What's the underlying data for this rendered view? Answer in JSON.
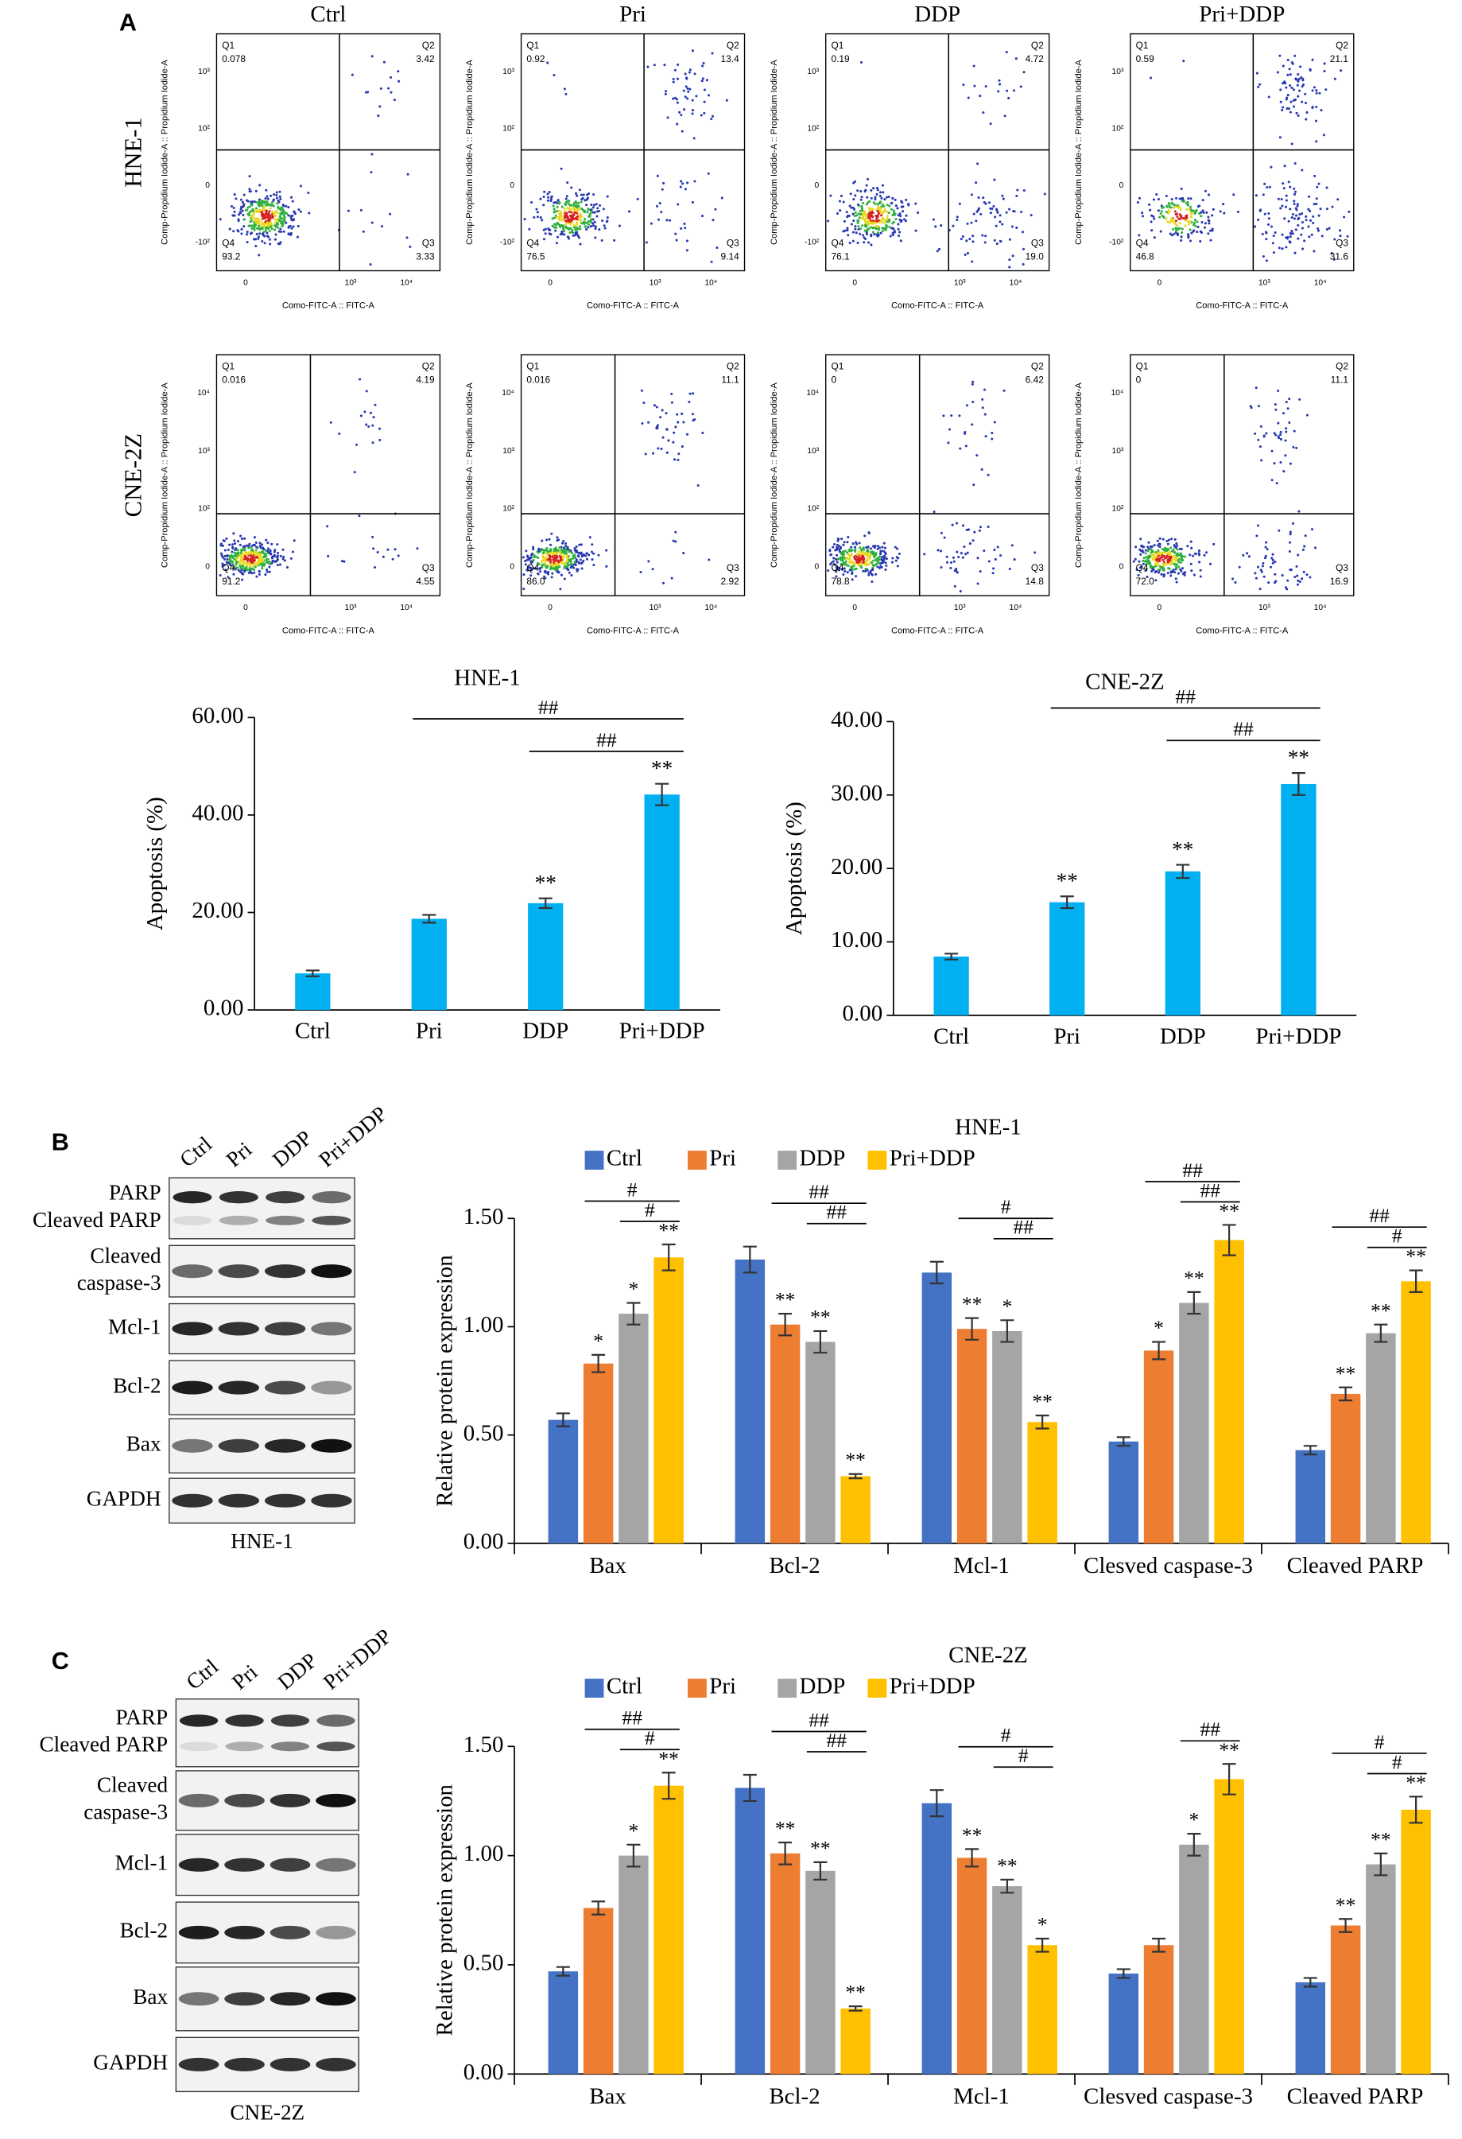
{
  "panel_labels": [
    "A",
    "B",
    "C"
  ],
  "flow": {
    "columns": [
      "Ctrl",
      "Pri",
      "DDP",
      "Pri+DDP"
    ],
    "quadrant_names": [
      "Q1",
      "Q2",
      "Q3",
      "Q4"
    ],
    "x_label": "Como-FITC-A :: FITC-A",
    "y_label": "Comp-Propidium Iodide-A :: Propidium Iodide-A",
    "rows": [
      {
        "label": "HNE-1",
        "yticks": [
          "-10²",
          "0",
          "10²",
          "10³"
        ],
        "xticks": [
          "0",
          "10³",
          "10⁴"
        ],
        "panels": [
          [
            "0.078",
            "3.42",
            "3.33",
            "93.2"
          ],
          [
            "0.92",
            "13.4",
            "9.14",
            "76.5"
          ],
          [
            "0.19",
            "4.72",
            "19.0",
            "76.1"
          ],
          [
            "0.59",
            "21.1",
            "31.6",
            "46.8"
          ]
        ]
      },
      {
        "label": "CNE-2Z",
        "yticks": [
          "0",
          "10²",
          "10³",
          "10⁴"
        ],
        "xticks": [
          "0",
          "10³",
          "10⁴"
        ],
        "panels": [
          [
            "0.016",
            "4.19",
            "4.55",
            "91.2"
          ],
          [
            "0.016",
            "11.1",
            "2.92",
            "86.0"
          ],
          [
            "0",
            "6.42",
            "14.8",
            "78.8"
          ],
          [
            "0",
            "11.1",
            "16.9",
            "72.0"
          ]
        ]
      }
    ]
  },
  "blots": [
    {
      "caption": "HNE-1",
      "lanes": [
        "Ctrl",
        "Pri",
        "DDP",
        "Pri+DDP"
      ],
      "rows": [
        [
          "PARP",
          "Cleaved PARP"
        ],
        [
          "Cleaved",
          "caspase-3"
        ],
        [
          "Mcl-1"
        ],
        [
          "Bcl-2"
        ],
        [
          "Bax"
        ],
        [
          "GAPDH"
        ]
      ]
    },
    {
      "caption": "CNE-2Z",
      "lanes": [
        "Ctrl",
        "Pri",
        "DDP",
        "Pri+DDP"
      ],
      "rows": [
        [
          "PARP",
          "Cleaved PARP"
        ],
        [
          "Cleaved",
          "caspase-3"
        ],
        [
          "Mcl-1"
        ],
        [
          "Bcl-2"
        ],
        [
          "Bax"
        ],
        [
          "GAPDH"
        ]
      ]
    }
  ],
  "chart_data": [
    {
      "type": "bar",
      "title": "HNE-1",
      "ylabel": "Apoptosis (%)",
      "color": "#00b0f0",
      "categories": [
        "Ctrl",
        "Pri",
        "DDP",
        "Pri+DDP"
      ],
      "values": [
        7.5,
        18.7,
        21.9,
        44.2
      ],
      "errors": [
        0.6,
        0.8,
        1.0,
        2.2
      ],
      "stars": [
        null,
        null,
        "**",
        "**"
      ],
      "brackets": [
        {
          "text": "##",
          "from": 1,
          "to": 3
        },
        {
          "text": "##",
          "from": 2,
          "to": 3
        }
      ],
      "ylim": [
        0,
        60
      ],
      "yticks": [
        {
          "value": 0,
          "label": "0.00"
        },
        {
          "value": 20,
          "label": "20.00"
        },
        {
          "value": 40,
          "label": "40.00"
        },
        {
          "value": 60,
          "label": "60.00"
        }
      ]
    },
    {
      "type": "bar",
      "title": "CNE-2Z",
      "ylabel": "Apoptosis (%)",
      "color": "#00b0f0",
      "categories": [
        "Ctrl",
        "Pri",
        "DDP",
        "Pri+DDP"
      ],
      "values": [
        8.0,
        15.4,
        19.6,
        31.5
      ],
      "errors": [
        0.4,
        0.8,
        0.9,
        1.5
      ],
      "stars": [
        null,
        "**",
        "**",
        "**"
      ],
      "brackets": [
        {
          "text": "##",
          "from": 1,
          "to": 3
        },
        {
          "text": "##",
          "from": 2,
          "to": 3
        }
      ],
      "ylim": [
        0,
        40
      ],
      "yticks": [
        {
          "value": 0,
          "label": "0.00"
        },
        {
          "value": 10,
          "label": "10.00"
        },
        {
          "value": 20,
          "label": "20.00"
        },
        {
          "value": 30,
          "label": "30.00"
        },
        {
          "value": 40,
          "label": "40.00"
        }
      ]
    },
    {
      "type": "grouped_bar",
      "title": "HNE-1",
      "ylabel": "Relative protein expression",
      "categories": [
        "Bax",
        "Bcl-2",
        "Mcl-1",
        "Clesved caspase-3",
        "Cleaved PARP"
      ],
      "series": [
        {
          "name": "Ctrl",
          "color": "#4472c4",
          "values": [
            0.57,
            1.31,
            1.25,
            0.47,
            0.43
          ],
          "errors": [
            0.03,
            0.06,
            0.05,
            0.02,
            0.02
          ],
          "stars": [
            null,
            null,
            null,
            null,
            null
          ]
        },
        {
          "name": "Pri",
          "color": "#ed7d31",
          "values": [
            0.83,
            1.01,
            0.99,
            0.89,
            0.69
          ],
          "errors": [
            0.04,
            0.05,
            0.05,
            0.04,
            0.03
          ],
          "stars": [
            "*",
            "**",
            "**",
            "*",
            "**"
          ]
        },
        {
          "name": "DDP",
          "color": "#a5a5a5",
          "values": [
            1.06,
            0.93,
            0.98,
            1.11,
            0.97
          ],
          "errors": [
            0.05,
            0.05,
            0.05,
            0.05,
            0.04
          ],
          "stars": [
            "*",
            "**",
            "*",
            "**",
            "**"
          ]
        },
        {
          "name": "Pri+DDP",
          "color": "#ffc000",
          "values": [
            1.32,
            0.31,
            0.56,
            1.4,
            1.21
          ],
          "errors": [
            0.06,
            0.01,
            0.03,
            0.07,
            0.05
          ],
          "stars": [
            "**",
            "**",
            "**",
            "**",
            "**"
          ]
        }
      ],
      "brackets": [
        {
          "text": "#",
          "category": 0,
          "from": 1,
          "to": 3
        },
        {
          "text": "#",
          "category": 0,
          "from": 2,
          "to": 3
        },
        {
          "text": "##",
          "category": 1,
          "from": 1,
          "to": 3
        },
        {
          "text": "##",
          "category": 1,
          "from": 2,
          "to": 3
        },
        {
          "text": "#",
          "category": 2,
          "from": 1,
          "to": 3
        },
        {
          "text": "##",
          "category": 2,
          "from": 2,
          "to": 3
        },
        {
          "text": "##",
          "category": 3,
          "from": 1,
          "to": 3
        },
        {
          "text": "##",
          "category": 3,
          "from": 2,
          "to": 3
        },
        {
          "text": "##",
          "category": 4,
          "from": 1,
          "to": 3
        },
        {
          "text": "#",
          "category": 4,
          "from": 2,
          "to": 3
        }
      ],
      "ylim": [
        0,
        1.5
      ],
      "yticks": [
        {
          "value": 0,
          "label": "0.00"
        },
        {
          "value": 0.5,
          "label": "0.50"
        },
        {
          "value": 1,
          "label": "1.00"
        },
        {
          "value": 1.5,
          "label": "1.50"
        }
      ]
    },
    {
      "type": "grouped_bar",
      "title": "CNE-2Z",
      "ylabel": "Relative protein expression",
      "categories": [
        "Bax",
        "Bcl-2",
        "Mcl-1",
        "Clesved caspase-3",
        "Cleaved PARP"
      ],
      "series": [
        {
          "name": "Ctrl",
          "color": "#4472c4",
          "values": [
            0.47,
            1.31,
            1.24,
            0.46,
            0.42
          ],
          "errors": [
            0.02,
            0.06,
            0.06,
            0.02,
            0.02
          ],
          "stars": [
            null,
            null,
            null,
            null,
            null
          ]
        },
        {
          "name": "Pri",
          "color": "#ed7d31",
          "values": [
            0.76,
            1.01,
            0.99,
            0.59,
            0.68
          ],
          "errors": [
            0.03,
            0.05,
            0.04,
            0.03,
            0.03
          ],
          "stars": [
            null,
            "**",
            "**",
            null,
            "**"
          ]
        },
        {
          "name": "DDP",
          "color": "#a5a5a5",
          "values": [
            1.0,
            0.93,
            0.86,
            1.05,
            0.96
          ],
          "errors": [
            0.05,
            0.04,
            0.03,
            0.05,
            0.05
          ],
          "stars": [
            "*",
            "**",
            "**",
            "*",
            "**"
          ]
        },
        {
          "name": "Pri+DDP",
          "color": "#ffc000",
          "values": [
            1.32,
            0.3,
            0.59,
            1.35,
            1.21
          ],
          "errors": [
            0.06,
            0.01,
            0.03,
            0.07,
            0.06
          ],
          "stars": [
            "**",
            "**",
            "*",
            "**",
            "**"
          ]
        }
      ],
      "brackets": [
        {
          "text": "##",
          "category": 0,
          "from": 1,
          "to": 3
        },
        {
          "text": "#",
          "category": 0,
          "from": 2,
          "to": 3
        },
        {
          "text": "##",
          "category": 1,
          "from": 1,
          "to": 3
        },
        {
          "text": "##",
          "category": 1,
          "from": 2,
          "to": 3
        },
        {
          "text": "#",
          "category": 2,
          "from": 1,
          "to": 3
        },
        {
          "text": "#",
          "category": 2,
          "from": 2,
          "to": 3
        },
        {
          "text": "##",
          "category": 3,
          "from": 2,
          "to": 3
        },
        {
          "text": "#",
          "category": 4,
          "from": 1,
          "to": 3
        },
        {
          "text": "#",
          "category": 4,
          "from": 2,
          "to": 3
        }
      ],
      "ylim": [
        0,
        1.5
      ],
      "yticks": [
        {
          "value": 0,
          "label": "0.00"
        },
        {
          "value": 0.5,
          "label": "0.50"
        },
        {
          "value": 1,
          "label": "1.00"
        },
        {
          "value": 1.5,
          "label": "1.50"
        }
      ]
    }
  ]
}
